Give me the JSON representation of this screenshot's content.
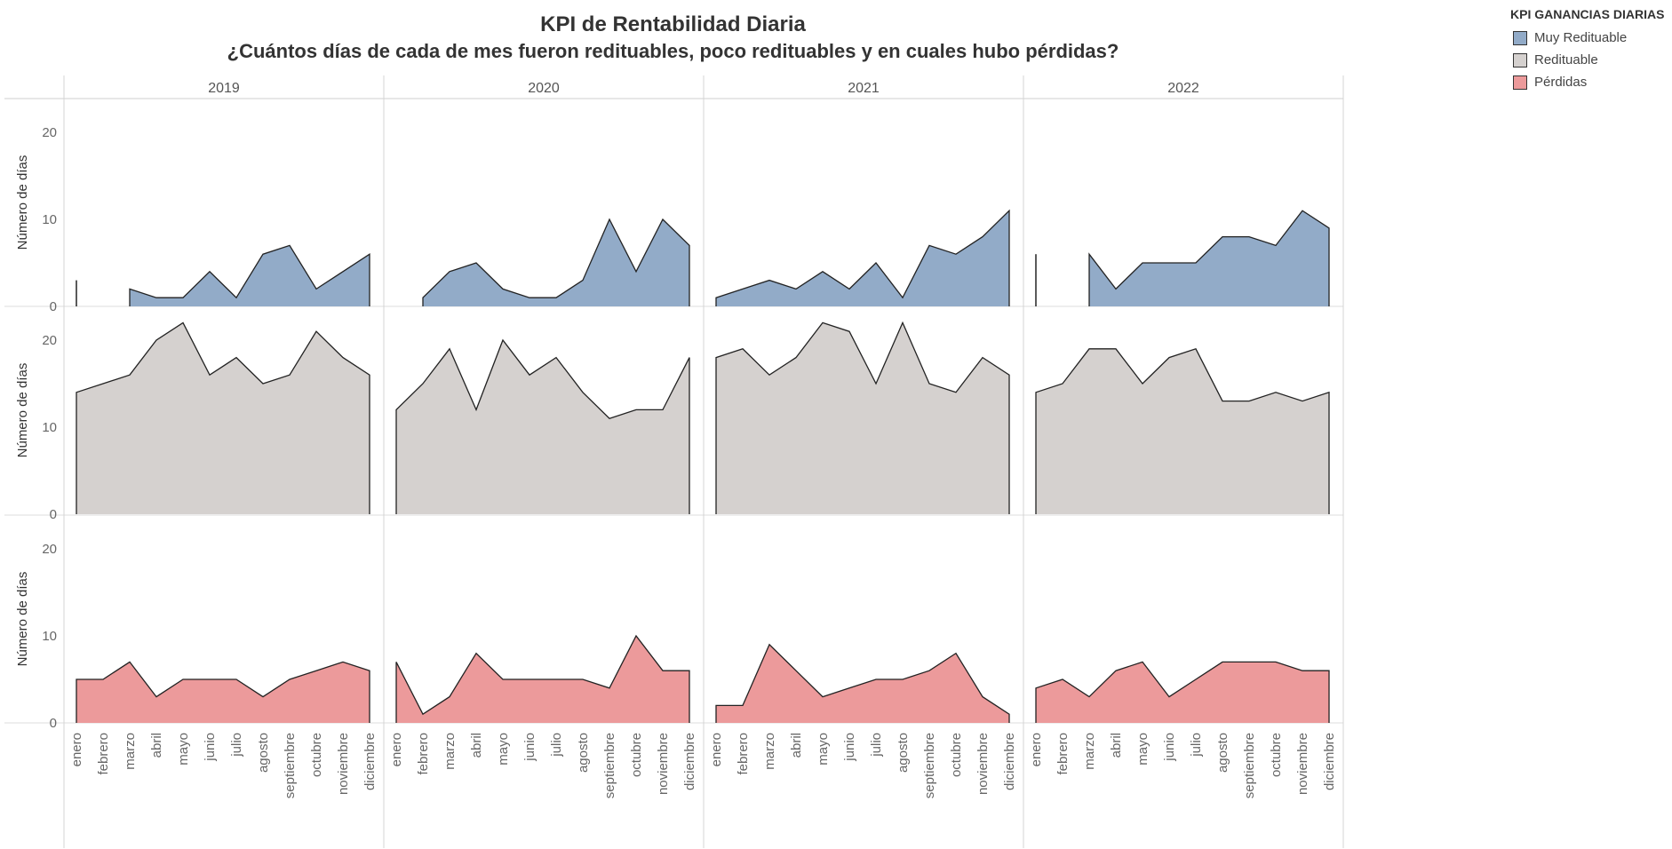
{
  "chart_data": {
    "type": "area",
    "title": "KPI de Rentabilidad Diaria",
    "subtitle": "¿Cuántos días de cada de mes fueron redituables, poco redituables y en cuales hubo pérdidas?",
    "ylabel": "Número de días",
    "ylim": [
      0,
      24
    ],
    "yticks": [
      0,
      10,
      20
    ],
    "years": [
      "2019",
      "2020",
      "2021",
      "2022"
    ],
    "months": [
      "enero",
      "febrero",
      "marzo",
      "abril",
      "mayo",
      "junio",
      "julio",
      "agosto",
      "septiembre",
      "octubre",
      "noviembre",
      "diciembre"
    ],
    "legend": {
      "title": "KPI GANANCIAS DIARIAS",
      "position": "top-right",
      "items": [
        "Muy Redituable",
        "Redituable",
        "Pérdidas"
      ]
    },
    "series": [
      {
        "name": "Muy Redituable",
        "color": "#92abc8",
        "values": {
          "2019": [
            3,
            null,
            2,
            1,
            1,
            4,
            1,
            6,
            7,
            2,
            4,
            6
          ],
          "2020": [
            null,
            1,
            4,
            5,
            2,
            1,
            1,
            3,
            10,
            4,
            10,
            7
          ],
          "2021": [
            1,
            2,
            3,
            2,
            4,
            2,
            5,
            1,
            7,
            6,
            8,
            11
          ],
          "2022": [
            6,
            null,
            6,
            2,
            5,
            5,
            5,
            8,
            8,
            7,
            11,
            9
          ]
        }
      },
      {
        "name": "Redituable",
        "color": "#d5d1cf",
        "values": {
          "2019": [
            14,
            15,
            16,
            20,
            22,
            16,
            18,
            15,
            16,
            21,
            18,
            16
          ],
          "2020": [
            12,
            15,
            19,
            12,
            20,
            16,
            18,
            14,
            11,
            12,
            12,
            18
          ],
          "2021": [
            18,
            19,
            16,
            18,
            22,
            21,
            15,
            22,
            15,
            14,
            18,
            16
          ],
          "2022": [
            14,
            15,
            19,
            19,
            15,
            18,
            19,
            13,
            13,
            14,
            13,
            14
          ]
        }
      },
      {
        "name": "Pérdidas",
        "color": "#ec9a9b",
        "values": {
          "2019": [
            5,
            5,
            7,
            3,
            5,
            5,
            5,
            3,
            5,
            6,
            7,
            6
          ],
          "2020": [
            7,
            1,
            3,
            8,
            5,
            5,
            5,
            5,
            4,
            10,
            6,
            6
          ],
          "2021": [
            2,
            2,
            9,
            6,
            3,
            4,
            5,
            5,
            6,
            8,
            3,
            1
          ],
          "2022": [
            4,
            5,
            3,
            6,
            7,
            3,
            5,
            7,
            7,
            7,
            6,
            6
          ]
        }
      }
    ]
  }
}
